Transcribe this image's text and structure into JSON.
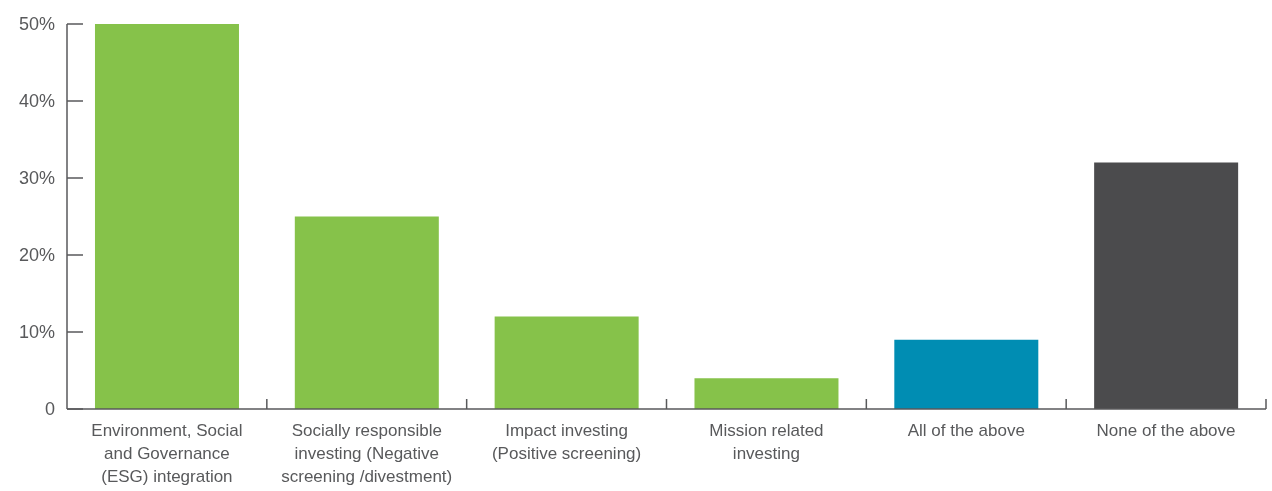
{
  "chart_data": {
    "type": "bar",
    "categories": [
      "Environment, Social and Governance (ESG) integration",
      "Socially responsible investing (Negative screening /divestment)",
      "Impact investing (Positive screening)",
      "Mission related investing",
      "All of the above",
      "None of the above"
    ],
    "values": [
      50,
      25,
      12,
      4,
      9,
      32
    ],
    "colors": [
      "#86c24a",
      "#86c24a",
      "#86c24a",
      "#86c24a",
      "#008db3",
      "#4b4b4d"
    ],
    "ylim": [
      0,
      50
    ],
    "yticks": [
      0,
      {
        "value": 10,
        "label": "10%"
      },
      {
        "value": 20,
        "label": "20%"
      },
      {
        "value": 30,
        "label": "30%"
      },
      {
        "value": 40,
        "label": "40%"
      },
      {
        "value": 50,
        "label": "50%"
      }
    ]
  }
}
